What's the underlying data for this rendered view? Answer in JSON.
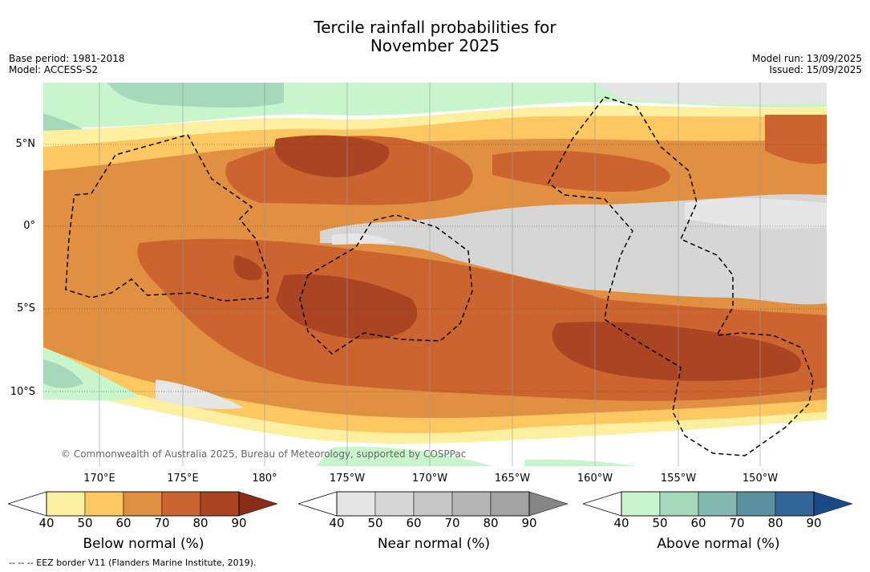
{
  "title": {
    "line1": "Tercile rainfall probabilities for",
    "line2": "November 2025"
  },
  "meta_left": {
    "base_period": "Base period: 1981-2018",
    "model": "Model: ACCESS-S2"
  },
  "meta_right": {
    "model_run": "Model run: 13/09/2025",
    "issued": "Issued: 15/09/2025"
  },
  "map": {
    "lat_labels": [
      "5°N",
      "0°",
      "5°S",
      "10°S"
    ],
    "lon_labels": [
      "170°E",
      "175°E",
      "180°",
      "175°W",
      "170°W",
      "165°W",
      "160°W",
      "155°W",
      "150°W"
    ],
    "copyright": "© Commonwealth of Australia 2025, Bureau of Meteorology, supported by COSPPac"
  },
  "colorbars": [
    {
      "title": "Below normal (%)",
      "ticks": [
        "40",
        "50",
        "60",
        "70",
        "80",
        "90"
      ],
      "colors": [
        "#fdefa0",
        "#fdc862",
        "#e09040",
        "#cc6430",
        "#aa4422",
        "#8a2c18"
      ]
    },
    {
      "title": "Near normal (%)",
      "ticks": [
        "40",
        "50",
        "60",
        "70",
        "80",
        "90"
      ],
      "colors": [
        "#e6e6e6",
        "#d6d6d6",
        "#c6c6c6",
        "#b4b4b4",
        "#a2a2a2",
        "#858585"
      ]
    },
    {
      "title": "Above normal (%)",
      "ticks": [
        "40",
        "50",
        "60",
        "70",
        "80",
        "90"
      ],
      "colors": [
        "#c8f5cc",
        "#a6d8bc",
        "#82b8b0",
        "#5890a0",
        "#336698",
        "#1a4a88"
      ]
    }
  ],
  "footnote": "-- -- -- EEZ border V11 (Flanders Marine Institute, 2019)."
}
